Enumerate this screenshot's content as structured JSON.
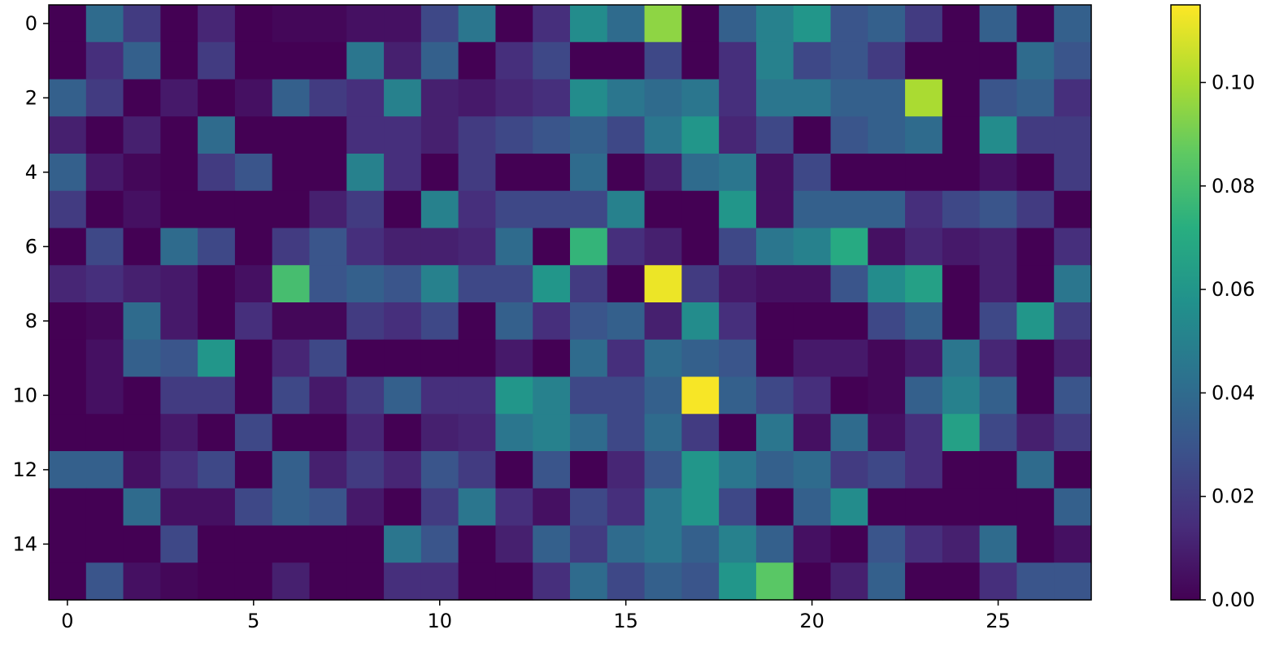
{
  "chart_data": {
    "type": "heatmap",
    "title": "",
    "xlabel": "",
    "ylabel": "",
    "colormap": "viridis",
    "rows": 16,
    "cols": 28,
    "x_ticks": [
      0,
      5,
      10,
      15,
      20,
      25
    ],
    "y_ticks": [
      0,
      2,
      4,
      6,
      8,
      10,
      12,
      14
    ],
    "colorbar": {
      "min": 0.0,
      "max": 0.115,
      "ticks": [
        0.0,
        0.02,
        0.04,
        0.06,
        0.08,
        0.1
      ],
      "tick_labels": [
        "0.00",
        "0.02",
        "0.04",
        "0.06",
        "0.08",
        "0.10"
      ]
    },
    "x_tick_labels": [
      "0",
      "5",
      "10",
      "15",
      "20",
      "25"
    ],
    "y_tick_labels": [
      "0",
      "2",
      "4",
      "6",
      "8",
      "10",
      "12",
      "14"
    ],
    "values": [
      [
        0.0,
        0.04,
        0.02,
        0.0,
        0.012,
        0.0,
        0.002,
        0.002,
        0.005,
        0.005,
        0.025,
        0.045,
        0.0,
        0.015,
        0.055,
        0.04,
        0.095,
        0.0,
        0.035,
        0.05,
        0.06,
        0.03,
        0.035,
        0.02,
        0.0,
        0.035,
        0.0,
        0.035
      ],
      [
        0.0,
        0.015,
        0.035,
        0.0,
        0.02,
        0.0,
        0.0,
        0.0,
        0.045,
        0.01,
        0.035,
        0.0,
        0.015,
        0.025,
        0.0,
        0.0,
        0.025,
        0.0,
        0.015,
        0.05,
        0.025,
        0.03,
        0.02,
        0.0,
        0.0,
        0.0,
        0.04,
        0.03
      ],
      [
        0.035,
        0.02,
        0.0,
        0.008,
        0.0,
        0.005,
        0.035,
        0.02,
        0.015,
        0.05,
        0.01,
        0.008,
        0.012,
        0.015,
        0.055,
        0.045,
        0.04,
        0.045,
        0.015,
        0.045,
        0.045,
        0.035,
        0.035,
        0.1,
        0.0,
        0.03,
        0.035,
        0.015
      ],
      [
        0.01,
        0.0,
        0.01,
        0.0,
        0.04,
        0.0,
        0.0,
        0.0,
        0.015,
        0.015,
        0.01,
        0.02,
        0.025,
        0.03,
        0.035,
        0.025,
        0.045,
        0.06,
        0.012,
        0.025,
        0.0,
        0.03,
        0.035,
        0.04,
        0.0,
        0.055,
        0.02,
        0.02
      ],
      [
        0.035,
        0.008,
        0.002,
        0.0,
        0.02,
        0.03,
        0.0,
        0.0,
        0.05,
        0.015,
        0.0,
        0.02,
        0.0,
        0.0,
        0.04,
        0.0,
        0.01,
        0.04,
        0.045,
        0.005,
        0.025,
        0.0,
        0.0,
        0.0,
        0.0,
        0.005,
        0.0,
        0.02
      ],
      [
        0.02,
        0.0,
        0.005,
        0.0,
        0.0,
        0.0,
        0.0,
        0.01,
        0.02,
        0.0,
        0.05,
        0.015,
        0.025,
        0.025,
        0.025,
        0.05,
        0.0,
        0.0,
        0.06,
        0.005,
        0.035,
        0.035,
        0.035,
        0.015,
        0.025,
        0.03,
        0.02,
        0.0
      ],
      [
        0.0,
        0.025,
        0.0,
        0.04,
        0.025,
        0.0,
        0.02,
        0.03,
        0.015,
        0.01,
        0.01,
        0.012,
        0.04,
        0.0,
        0.075,
        0.015,
        0.01,
        0.0,
        0.025,
        0.045,
        0.05,
        0.07,
        0.005,
        0.012,
        0.008,
        0.01,
        0.0,
        0.015
      ],
      [
        0.012,
        0.015,
        0.01,
        0.008,
        0.0,
        0.005,
        0.08,
        0.03,
        0.035,
        0.03,
        0.05,
        0.025,
        0.025,
        0.06,
        0.02,
        0.0,
        0.112,
        0.02,
        0.008,
        0.005,
        0.005,
        0.03,
        0.055,
        0.065,
        0.0,
        0.01,
        0.0,
        0.045
      ],
      [
        0.0,
        0.002,
        0.04,
        0.008,
        0.0,
        0.015,
        0.002,
        0.002,
        0.02,
        0.015,
        0.025,
        0.0,
        0.035,
        0.015,
        0.03,
        0.035,
        0.01,
        0.055,
        0.015,
        0.0,
        0.0,
        0.0,
        0.025,
        0.035,
        0.0,
        0.025,
        0.06,
        0.02
      ],
      [
        0.0,
        0.005,
        0.035,
        0.03,
        0.06,
        0.0,
        0.012,
        0.025,
        0.0,
        0.0,
        0.0,
        0.0,
        0.008,
        0.0,
        0.04,
        0.015,
        0.04,
        0.035,
        0.03,
        0.0,
        0.008,
        0.008,
        0.002,
        0.008,
        0.045,
        0.012,
        0.0,
        0.01
      ],
      [
        0.0,
        0.005,
        0.0,
        0.02,
        0.02,
        0.0,
        0.025,
        0.008,
        0.02,
        0.035,
        0.015,
        0.015,
        0.06,
        0.05,
        0.025,
        0.025,
        0.035,
        0.114,
        0.035,
        0.025,
        0.015,
        0.0,
        0.002,
        0.035,
        0.05,
        0.035,
        0.0,
        0.03
      ],
      [
        0.0,
        0.0,
        0.0,
        0.008,
        0.0,
        0.025,
        0.0,
        0.0,
        0.012,
        0.0,
        0.01,
        0.012,
        0.045,
        0.05,
        0.04,
        0.025,
        0.04,
        0.02,
        0.0,
        0.045,
        0.005,
        0.04,
        0.005,
        0.015,
        0.065,
        0.025,
        0.01,
        0.02
      ],
      [
        0.035,
        0.035,
        0.005,
        0.015,
        0.025,
        0.0,
        0.035,
        0.01,
        0.02,
        0.012,
        0.03,
        0.02,
        0.0,
        0.03,
        0.0,
        0.012,
        0.03,
        0.06,
        0.045,
        0.035,
        0.04,
        0.02,
        0.025,
        0.015,
        0.0,
        0.0,
        0.04,
        0.0
      ],
      [
        0.0,
        0.0,
        0.04,
        0.005,
        0.005,
        0.025,
        0.035,
        0.03,
        0.008,
        0.0,
        0.02,
        0.045,
        0.015,
        0.005,
        0.025,
        0.015,
        0.045,
        0.06,
        0.025,
        0.0,
        0.035,
        0.055,
        0.0,
        0.0,
        0.0,
        0.0,
        0.0,
        0.035
      ],
      [
        0.0,
        0.0,
        0.0,
        0.025,
        0.0,
        0.0,
        0.0,
        0.0,
        0.0,
        0.045,
        0.03,
        0.0,
        0.01,
        0.035,
        0.02,
        0.04,
        0.045,
        0.035,
        0.05,
        0.035,
        0.005,
        0.0,
        0.03,
        0.015,
        0.01,
        0.04,
        0.0,
        0.005
      ],
      [
        0.0,
        0.03,
        0.005,
        0.002,
        0.0,
        0.0,
        0.01,
        0.0,
        0.0,
        0.015,
        0.015,
        0.0,
        0.0,
        0.015,
        0.04,
        0.025,
        0.035,
        0.03,
        0.06,
        0.085,
        0.0,
        0.01,
        0.035,
        0.0,
        0.0,
        0.015,
        0.03,
        0.03
      ]
    ]
  }
}
